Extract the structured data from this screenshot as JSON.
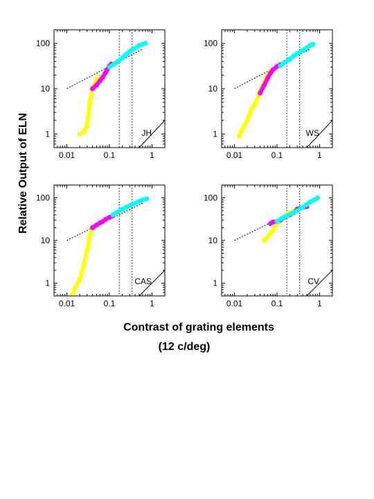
{
  "figure": {
    "ylabel": "Relative Output of ELN",
    "xlabel_line1": "Contrast of grating elements",
    "xlabel_line2": "(12 c/deg)"
  },
  "chart_data": [
    {
      "type": "line",
      "panel_label": "JH",
      "xscale": "log",
      "yscale": "log",
      "xlim": [
        0.005,
        2
      ],
      "ylim": [
        0.5,
        200
      ],
      "xticks": [
        "0.01",
        "0.1",
        "1"
      ],
      "yticks": [
        "1",
        "10",
        "100"
      ],
      "vlines_x": [
        0.17,
        0.34
      ],
      "identity_line": true,
      "reference_line": {
        "x": [
          0.01,
          0.6
        ],
        "y": [
          10,
          75
        ]
      },
      "series": [
        {
          "color": "#ffff00",
          "x": [
            0.02,
            0.025,
            0.03,
            0.035,
            0.04,
            0.05,
            0.06
          ],
          "y": [
            1.0,
            1.1,
            1.5,
            5.0,
            10,
            16,
            18
          ]
        },
        {
          "color": "#ff00ff",
          "x": [
            0.04,
            0.05,
            0.06,
            0.07,
            0.08,
            0.09,
            0.1,
            0.11
          ],
          "y": [
            10,
            12,
            15,
            18,
            22,
            27,
            32,
            35
          ]
        },
        {
          "color": "#00ffff",
          "x": [
            0.1,
            0.13,
            0.16,
            0.2,
            0.25,
            0.32,
            0.4,
            0.5,
            0.6,
            0.7
          ],
          "y": [
            30,
            35,
            40,
            48,
            58,
            70,
            78,
            90,
            96,
            100
          ]
        }
      ]
    },
    {
      "type": "line",
      "panel_label": "WS",
      "xscale": "log",
      "yscale": "log",
      "xlim": [
        0.005,
        2
      ],
      "ylim": [
        0.5,
        200
      ],
      "xticks": [
        "0.01",
        "0.1",
        "1"
      ],
      "yticks": [
        "1",
        "10",
        "100"
      ],
      "vlines_x": [
        0.17,
        0.34
      ],
      "identity_line": true,
      "reference_line": {
        "x": [
          0.01,
          0.6
        ],
        "y": [
          10,
          75
        ]
      },
      "series": [
        {
          "color": "#ffff00",
          "x": [
            0.013,
            0.015,
            0.02,
            0.025,
            0.03,
            0.035,
            0.04,
            0.05,
            0.06,
            0.07
          ],
          "y": [
            0.9,
            1.2,
            2.0,
            3.5,
            4.5,
            6.0,
            9,
            14,
            20,
            25
          ]
        },
        {
          "color": "#ff00ff",
          "x": [
            0.04,
            0.05,
            0.06,
            0.07,
            0.08,
            0.1,
            0.12
          ],
          "y": [
            8,
            12,
            17,
            22,
            26,
            31,
            34
          ]
        },
        {
          "color": "#00ffff",
          "x": [
            0.12,
            0.15,
            0.2,
            0.25,
            0.3,
            0.4,
            0.5,
            0.6,
            0.7
          ],
          "y": [
            32,
            38,
            45,
            53,
            60,
            70,
            80,
            90,
            96
          ]
        }
      ]
    },
    {
      "type": "line",
      "panel_label": "CAS",
      "xscale": "log",
      "yscale": "log",
      "xlim": [
        0.005,
        2
      ],
      "ylim": [
        0.5,
        200
      ],
      "xticks": [
        "0.01",
        "0.1",
        "1"
      ],
      "yticks": [
        "1",
        "10",
        "100"
      ],
      "vlines_x": [
        0.17,
        0.34
      ],
      "identity_line": true,
      "reference_line": {
        "x": [
          0.01,
          0.6
        ],
        "y": [
          10,
          75
        ]
      },
      "series": [
        {
          "color": "#ffff00",
          "x": [
            0.013,
            0.015,
            0.02,
            0.025,
            0.03,
            0.035,
            0.04
          ],
          "y": [
            0.5,
            0.7,
            1.2,
            2.5,
            6.0,
            13,
            20
          ]
        },
        {
          "color": "#ff00ff",
          "x": [
            0.04,
            0.05,
            0.06,
            0.07,
            0.08,
            0.1,
            0.12
          ],
          "y": [
            20,
            23,
            26,
            28,
            31,
            35,
            38
          ]
        },
        {
          "color": "#00ffff",
          "x": [
            0.12,
            0.15,
            0.2,
            0.25,
            0.3,
            0.4,
            0.5,
            0.6,
            0.75
          ],
          "y": [
            40,
            46,
            54,
            60,
            66,
            75,
            83,
            90,
            95
          ]
        }
      ]
    },
    {
      "type": "line",
      "panel_label": "CV",
      "xscale": "log",
      "yscale": "log",
      "xlim": [
        0.005,
        2
      ],
      "ylim": [
        0.5,
        200
      ],
      "xticks": [
        "0.01",
        "0.1",
        "1"
      ],
      "yticks": [
        "1",
        "10",
        "100"
      ],
      "vlines_x": [
        0.17,
        0.34
      ],
      "identity_line": true,
      "reference_line": {
        "x": [
          0.01,
          0.6
        ],
        "y": [
          10,
          75
        ]
      },
      "series": [
        {
          "color": "#ffff00",
          "x": [
            0.05,
            0.06,
            0.08,
            0.1,
            0.12,
            0.15,
            0.2,
            0.25,
            0.3,
            0.4
          ],
          "y": [
            10,
            12,
            17,
            25,
            30,
            38,
            45,
            50,
            55,
            60
          ]
        },
        {
          "color": "#ff00ff",
          "x": [
            0.07,
            0.08,
            0.1,
            0.12,
            0.15,
            0.2,
            0.25,
            0.3,
            0.4,
            0.5
          ],
          "y": [
            25,
            27,
            28,
            30,
            35,
            40,
            45,
            55,
            60,
            62
          ]
        },
        {
          "color": "#00ffff",
          "x": [
            0.1,
            0.13,
            0.17,
            0.22,
            0.3,
            0.4,
            0.5,
            0.6,
            0.75,
            0.9
          ],
          "y": [
            28,
            33,
            38,
            43,
            50,
            60,
            70,
            80,
            90,
            100
          ]
        }
      ]
    }
  ]
}
